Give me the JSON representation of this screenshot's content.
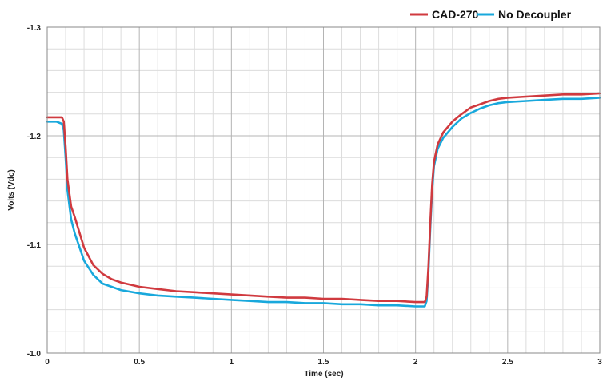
{
  "chart_data": {
    "type": "line",
    "title": "",
    "xlabel": "Time (sec)",
    "ylabel": "Volts (Vdc)",
    "xlim": [
      0,
      3
    ],
    "ylim": [
      -1.3,
      -1.0
    ],
    "y_axis_inverted": true,
    "grid": true,
    "legend_position": "top-right",
    "x_ticks": [
      {
        "v": 0,
        "label": "0"
      },
      {
        "v": 0.5,
        "label": "0.5"
      },
      {
        "v": 1,
        "label": "1"
      },
      {
        "v": 1.5,
        "label": "1.5"
      },
      {
        "v": 2,
        "label": "2"
      },
      {
        "v": 2.5,
        "label": "2.5"
      },
      {
        "v": 3,
        "label": "3"
      }
    ],
    "y_ticks": [
      {
        "v": -1.3,
        "label": "-1.3"
      },
      {
        "v": -1.2,
        "label": "-1.2"
      },
      {
        "v": -1.1,
        "label": "-1.1"
      },
      {
        "v": -1.0,
        "label": "-1.0"
      }
    ],
    "series": [
      {
        "name": "CAD-270",
        "color": "#d03a3f",
        "points": [
          [
            0,
            -1.217
          ],
          [
            0.05,
            -1.217
          ],
          [
            0.08,
            -1.217
          ],
          [
            0.09,
            -1.213
          ],
          [
            0.1,
            -1.19
          ],
          [
            0.11,
            -1.16
          ],
          [
            0.13,
            -1.135
          ],
          [
            0.15,
            -1.125
          ],
          [
            0.18,
            -1.108
          ],
          [
            0.2,
            -1.097
          ],
          [
            0.25,
            -1.081
          ],
          [
            0.3,
            -1.073
          ],
          [
            0.35,
            -1.068
          ],
          [
            0.4,
            -1.065
          ],
          [
            0.5,
            -1.061
          ],
          [
            0.6,
            -1.059
          ],
          [
            0.7,
            -1.057
          ],
          [
            0.8,
            -1.056
          ],
          [
            0.9,
            -1.055
          ],
          [
            1.0,
            -1.054
          ],
          [
            1.1,
            -1.053
          ],
          [
            1.2,
            -1.052
          ],
          [
            1.3,
            -1.051
          ],
          [
            1.4,
            -1.051
          ],
          [
            1.5,
            -1.05
          ],
          [
            1.6,
            -1.05
          ],
          [
            1.7,
            -1.049
          ],
          [
            1.8,
            -1.048
          ],
          [
            1.9,
            -1.048
          ],
          [
            2.0,
            -1.047
          ],
          [
            2.05,
            -1.047
          ],
          [
            2.06,
            -1.052
          ],
          [
            2.07,
            -1.08
          ],
          [
            2.08,
            -1.12
          ],
          [
            2.09,
            -1.155
          ],
          [
            2.1,
            -1.176
          ],
          [
            2.12,
            -1.192
          ],
          [
            2.15,
            -1.203
          ],
          [
            2.2,
            -1.213
          ],
          [
            2.25,
            -1.22
          ],
          [
            2.3,
            -1.226
          ],
          [
            2.35,
            -1.229
          ],
          [
            2.4,
            -1.232
          ],
          [
            2.45,
            -1.234
          ],
          [
            2.5,
            -1.235
          ],
          [
            2.6,
            -1.236
          ],
          [
            2.7,
            -1.237
          ],
          [
            2.8,
            -1.238
          ],
          [
            2.9,
            -1.238
          ],
          [
            3.0,
            -1.239
          ]
        ]
      },
      {
        "name": "No Decoupler",
        "color": "#18a8dc",
        "points": [
          [
            0,
            -1.213
          ],
          [
            0.05,
            -1.213
          ],
          [
            0.08,
            -1.211
          ],
          [
            0.09,
            -1.205
          ],
          [
            0.1,
            -1.18
          ],
          [
            0.11,
            -1.15
          ],
          [
            0.13,
            -1.123
          ],
          [
            0.15,
            -1.11
          ],
          [
            0.18,
            -1.095
          ],
          [
            0.2,
            -1.085
          ],
          [
            0.25,
            -1.072
          ],
          [
            0.3,
            -1.064
          ],
          [
            0.35,
            -1.061
          ],
          [
            0.4,
            -1.058
          ],
          [
            0.5,
            -1.055
          ],
          [
            0.6,
            -1.053
          ],
          [
            0.7,
            -1.052
          ],
          [
            0.8,
            -1.051
          ],
          [
            0.9,
            -1.05
          ],
          [
            1.0,
            -1.049
          ],
          [
            1.1,
            -1.048
          ],
          [
            1.2,
            -1.047
          ],
          [
            1.3,
            -1.047
          ],
          [
            1.4,
            -1.046
          ],
          [
            1.5,
            -1.046
          ],
          [
            1.6,
            -1.045
          ],
          [
            1.7,
            -1.045
          ],
          [
            1.8,
            -1.044
          ],
          [
            1.9,
            -1.044
          ],
          [
            2.0,
            -1.043
          ],
          [
            2.05,
            -1.043
          ],
          [
            2.06,
            -1.048
          ],
          [
            2.07,
            -1.075
          ],
          [
            2.08,
            -1.115
          ],
          [
            2.09,
            -1.15
          ],
          [
            2.1,
            -1.172
          ],
          [
            2.12,
            -1.188
          ],
          [
            2.15,
            -1.198
          ],
          [
            2.2,
            -1.208
          ],
          [
            2.25,
            -1.216
          ],
          [
            2.3,
            -1.221
          ],
          [
            2.35,
            -1.225
          ],
          [
            2.4,
            -1.228
          ],
          [
            2.45,
            -1.23
          ],
          [
            2.5,
            -1.231
          ],
          [
            2.6,
            -1.232
          ],
          [
            2.7,
            -1.233
          ],
          [
            2.8,
            -1.234
          ],
          [
            2.9,
            -1.234
          ],
          [
            3.0,
            -1.235
          ]
        ]
      }
    ]
  }
}
